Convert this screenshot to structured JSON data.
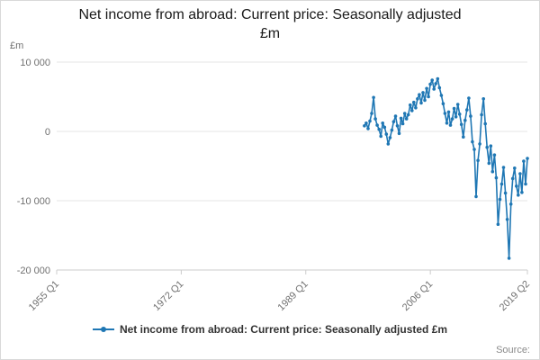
{
  "page": {
    "title_lines": [
      "Net income from abroad: Current price: Seasonally adjusted",
      "£m"
    ],
    "y_unit": "£m",
    "legend_label": "Net income from abroad: Current price: Seasonally adjusted £m",
    "source_label": "Source:"
  },
  "chart_data": {
    "type": "line",
    "title": "Net income from abroad: Current price: Seasonally adjusted £m",
    "xlabel": "",
    "ylabel": "£m",
    "ylim": [
      -20000,
      10000
    ],
    "grid": true,
    "legend_position": "bottom",
    "yticks": [
      {
        "value": 10000,
        "label": "10 000"
      },
      {
        "value": 0,
        "label": "0"
      },
      {
        "value": -10000,
        "label": "-10 000"
      },
      {
        "value": -20000,
        "label": "-20 000"
      }
    ],
    "x_axis": {
      "unit": "quarter",
      "range_start": "1955 Q1",
      "range_end": "2019 Q2",
      "ticks": [
        {
          "label": "1955 Q1",
          "index": 0
        },
        {
          "label": "1972 Q1",
          "index": 68
        },
        {
          "label": "1989 Q1",
          "index": 136
        },
        {
          "label": "2006 Q1",
          "index": 204
        },
        {
          "label": "2019 Q2",
          "index": 257
        }
      ]
    },
    "series": [
      {
        "name": "Net income from abroad: Current price: Seasonally adjusted £m",
        "color": "#1f77b4",
        "start": "1997 Q1",
        "start_index": 168,
        "quarterly": true,
        "values": [
          800,
          1200,
          400,
          1500,
          2600,
          4900,
          1800,
          900,
          300,
          -700,
          1200,
          600,
          -400,
          -1800,
          -900,
          200,
          1400,
          2200,
          800,
          -300,
          1900,
          1100,
          2600,
          1800,
          2400,
          3800,
          3000,
          4200,
          3400,
          4700,
          5300,
          4100,
          5600,
          4500,
          6200,
          5000,
          6800,
          7400,
          6100,
          6900,
          7600,
          6300,
          5200,
          4000,
          2600,
          1200,
          2800,
          900,
          1800,
          3300,
          2100,
          3900,
          2500,
          1000,
          -800,
          1600,
          3100,
          4800,
          2200,
          -1500,
          -2600,
          -9400,
          -4200,
          -1800,
          2400,
          4700,
          1100,
          -2300,
          -4600,
          -2100,
          -5800,
          -3400,
          -6700,
          -13400,
          -9800,
          -7600,
          -5200,
          -8900,
          -12700,
          -18300,
          -10500,
          -6800,
          -5300,
          -7900,
          -9200,
          -6100,
          -8800,
          -4300,
          -7600,
          -3900
        ]
      }
    ]
  }
}
